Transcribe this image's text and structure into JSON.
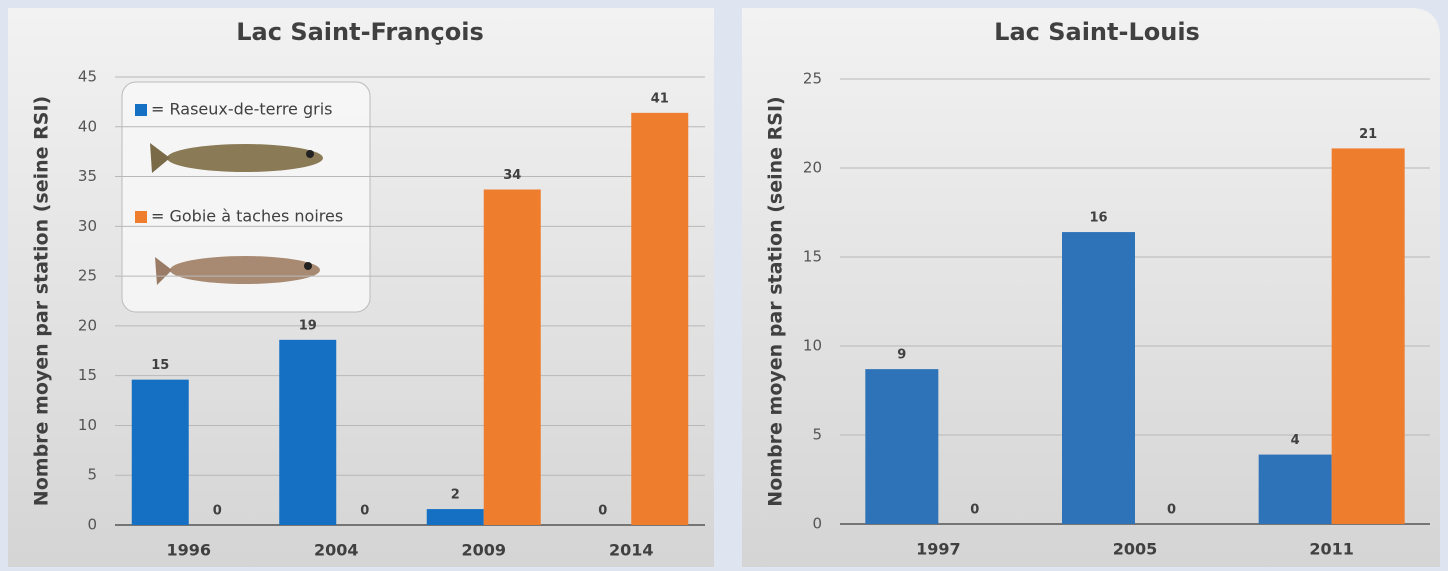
{
  "chart_data": [
    {
      "type": "bar",
      "title": "Lac Saint-François",
      "y_label": "Nombre moyen par station (seine RSI)",
      "categories": [
        "1996",
        "2004",
        "2009",
        "2014"
      ],
      "series": [
        {
          "name": "= Raseux-de-terre gris",
          "color": "#1570c4",
          "values": [
            14.6,
            18.6,
            1.6,
            0
          ],
          "value_labels": [
            "15",
            "19",
            "2",
            "0"
          ]
        },
        {
          "name": "= Gobie à taches noires",
          "color": "#ef7d2e",
          "values": [
            0,
            0,
            33.7,
            41.4
          ],
          "value_labels": [
            "0",
            "0",
            "34",
            "41"
          ]
        }
      ],
      "ylim": [
        0,
        45
      ],
      "yticks": [
        0,
        5,
        10,
        15,
        20,
        25,
        30,
        35,
        40,
        45
      ],
      "grid": true,
      "legend": true
    },
    {
      "type": "bar",
      "title": "Lac Saint-Louis",
      "y_label": "Nombre moyen par station (seine RSI)",
      "categories": [
        "1997",
        "2005",
        "2011"
      ],
      "series": [
        {
          "name": "= Raseux-de-terre gris",
          "color": "#2e72b8",
          "values": [
            8.7,
            16.4,
            3.9
          ],
          "value_labels": [
            "9",
            "16",
            "4"
          ]
        },
        {
          "name": "= Gobie à taches noires",
          "color": "#ef7d2e",
          "values": [
            0,
            0,
            21.1
          ],
          "value_labels": [
            "0",
            "0",
            "21"
          ]
        }
      ],
      "ylim": [
        0,
        25
      ],
      "yticks": [
        0,
        5,
        10,
        15,
        20,
        25
      ],
      "grid": true,
      "legend": false
    }
  ]
}
